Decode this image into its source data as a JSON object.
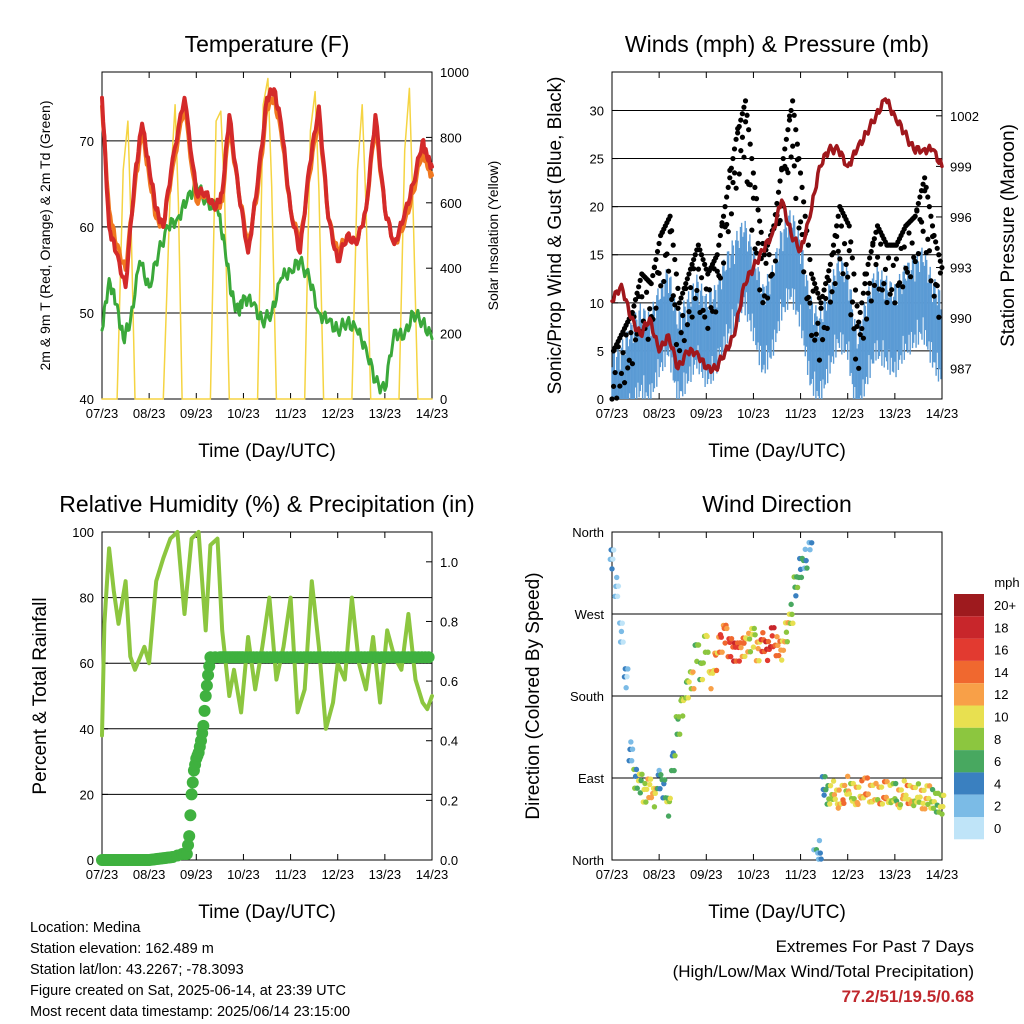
{
  "chart_data": [
    {
      "type": "line",
      "title": "Temperature (F)",
      "xlabel": "Time (Day/UTC)",
      "ylabel": "2m & 9m T (Red, Orange) & 2m Td (Green)",
      "y2label": "Solar Insolation (Yellow)",
      "categories": [
        "07/23",
        "08/23",
        "09/23",
        "10/23",
        "11/23",
        "12/23",
        "13/23",
        "14/23"
      ],
      "ylim": [
        40,
        78
      ],
      "yticks": [
        40,
        50,
        60,
        70
      ],
      "y2lim": [
        0,
        1000
      ],
      "y2ticks": [
        0,
        200,
        400,
        600,
        800,
        1000
      ],
      "grid": true,
      "series": [
        {
          "color": "#d42a2a",
          "axis": "left",
          "x": [
            0,
            0.15,
            0.3,
            0.5,
            0.7,
            0.85,
            1,
            1.15,
            1.3,
            1.5,
            1.75,
            2,
            2.2,
            2.4,
            2.55,
            2.7,
            2.9,
            3.1,
            3.3,
            3.5,
            3.65,
            3.8,
            4,
            4.2,
            4.4,
            4.6,
            4.8,
            5,
            5.2,
            5.4,
            5.6,
            5.8,
            6,
            6.2,
            6.4,
            6.6,
            6.8,
            6.9,
            7
          ],
          "values": [
            75,
            60,
            57,
            53,
            66,
            72,
            67,
            62,
            60,
            68,
            75,
            64,
            64,
            62,
            64,
            73,
            64,
            57,
            65,
            75,
            76,
            72,
            62,
            57,
            67,
            74,
            61,
            56,
            59,
            58,
            62,
            73,
            62,
            58,
            61,
            65,
            70,
            68,
            67
          ]
        },
        {
          "color": "#f07820",
          "axis": "left",
          "x": [
            0,
            0.15,
            0.3,
            0.5,
            0.7,
            0.85,
            1,
            1.15,
            1.3,
            1.5,
            1.75,
            2,
            2.2,
            2.4,
            2.55,
            2.7,
            2.9,
            3.1,
            3.3,
            3.5,
            3.65,
            3.8,
            4,
            4.2,
            4.4,
            4.6,
            4.8,
            5,
            5.2,
            5.4,
            5.6,
            5.8,
            6,
            6.2,
            6.4,
            6.6,
            6.8,
            6.9,
            7
          ],
          "values": [
            74,
            62,
            58,
            55,
            65,
            71,
            66,
            61,
            60,
            67,
            74,
            63,
            64,
            62,
            63,
            72,
            64,
            58,
            64,
            74,
            75,
            71,
            62,
            58,
            66,
            73,
            61,
            57,
            59,
            58,
            62,
            72,
            62,
            58,
            60,
            64,
            69,
            67,
            66
          ]
        },
        {
          "color": "#3aa83a",
          "axis": "left",
          "x": [
            0,
            0.15,
            0.3,
            0.45,
            0.6,
            0.8,
            1,
            1.2,
            1.4,
            1.6,
            1.8,
            2,
            2.2,
            2.45,
            2.6,
            2.75,
            2.9,
            3,
            3.2,
            3.4,
            3.6,
            3.8,
            4,
            4.2,
            4.4,
            4.6,
            4.8,
            5,
            5.2,
            5.4,
            5.6,
            5.8,
            6,
            6.2,
            6.4,
            6.6,
            6.8,
            7
          ],
          "values": [
            48,
            54,
            51,
            47,
            49,
            56,
            53,
            57,
            60,
            61,
            63,
            65,
            63,
            62,
            58,
            52,
            50,
            52,
            51,
            49,
            50,
            54,
            55,
            56,
            54,
            50,
            49,
            48,
            49,
            48,
            46,
            42,
            41,
            48,
            47,
            50,
            49,
            47
          ]
        },
        {
          "color": "#f5d442",
          "axis": "right",
          "x": [
            0,
            0.32,
            0.45,
            0.55,
            0.62,
            0.7,
            1.3,
            1.45,
            1.55,
            1.62,
            1.7,
            2.3,
            2.42,
            2.52,
            2.6,
            2.7,
            3.3,
            3.42,
            3.52,
            3.6,
            3.7,
            4.3,
            4.42,
            4.52,
            4.6,
            4.7,
            5.3,
            5.42,
            5.52,
            5.6,
            5.7,
            6.3,
            6.42,
            6.52,
            6.6,
            6.7,
            7
          ],
          "values": [
            0,
            0,
            700,
            850,
            520,
            0,
            0,
            650,
            900,
            600,
            0,
            0,
            850,
            880,
            620,
            0,
            0,
            900,
            980,
            650,
            0,
            0,
            820,
            940,
            640,
            0,
            0,
            700,
            900,
            590,
            0,
            0,
            760,
            950,
            580,
            0,
            0
          ]
        }
      ]
    },
    {
      "type": "scatter",
      "title": "Winds (mph) & Pressure (mb)",
      "xlabel": "Time (Day/UTC)",
      "ylabel": "Sonic/Prop Wind & Gust (Blue, Black)",
      "y2label": "Station Pressure (Maroon)",
      "categories": [
        "07/23",
        "08/23",
        "09/23",
        "10/23",
        "11/23",
        "12/23",
        "13/23",
        "14/23"
      ],
      "ylim": [
        0,
        34
      ],
      "yticks": [
        0,
        5,
        10,
        15,
        20,
        25,
        30
      ],
      "y2lim": [
        985.2,
        1004.6
      ],
      "y2ticks": [
        987,
        990,
        993,
        996,
        999,
        1002
      ],
      "grid": true,
      "series": [
        {
          "color": "#5b9bd5",
          "kind": "wind",
          "x": [
            0,
            0.2,
            0.4,
            0.6,
            0.8,
            1,
            1.2,
            1.4,
            1.6,
            1.8,
            2,
            2.2,
            2.4,
            2.6,
            2.8,
            3,
            3.2,
            3.4,
            3.6,
            3.8,
            4,
            4.2,
            4.4,
            4.6,
            4.8,
            5,
            5.2,
            5.4,
            5.6,
            5.8,
            6,
            6.2,
            6.4,
            6.6,
            6.8,
            7
          ],
          "values": [
            2,
            3,
            5,
            7,
            6,
            9,
            11,
            6,
            8,
            10,
            8,
            9,
            12,
            14,
            16,
            13,
            9,
            11,
            15,
            17,
            14,
            8,
            6,
            9,
            12,
            11,
            4,
            8,
            11,
            10,
            9,
            11,
            12,
            13,
            10,
            8
          ]
        },
        {
          "color": "#000000",
          "kind": "gust",
          "x": [
            0,
            0.2,
            0.4,
            0.6,
            0.8,
            1,
            1.2,
            1.4,
            1.6,
            1.8,
            2,
            2.2,
            2.4,
            2.6,
            2.8,
            3,
            3.2,
            3.4,
            3.6,
            3.8,
            4,
            4.2,
            4.4,
            4.6,
            4.8,
            5,
            5.2,
            5.4,
            5.6,
            5.8,
            6,
            6.2,
            6.4,
            6.6,
            6.8,
            7
          ],
          "values": [
            5,
            7,
            9,
            13,
            12,
            17,
            19,
            10,
            13,
            16,
            13,
            15,
            21,
            27,
            31,
            22,
            15,
            18,
            25,
            31,
            22,
            13,
            10,
            14,
            20,
            18,
            8,
            14,
            18,
            16,
            16,
            18,
            19,
            23,
            17,
            13
          ]
        },
        {
          "color": "#a0171c",
          "kind": "pressure",
          "x": [
            0,
            0.2,
            0.4,
            0.6,
            0.8,
            1,
            1.2,
            1.4,
            1.6,
            1.8,
            2,
            2.2,
            2.4,
            2.6,
            2.8,
            3,
            3.2,
            3.4,
            3.6,
            3.8,
            4,
            4.2,
            4.4,
            4.6,
            4.8,
            5,
            5.2,
            5.4,
            5.6,
            5.8,
            6,
            6.2,
            6.4,
            6.6,
            6.8,
            7
          ],
          "values": [
            991,
            992,
            990,
            989,
            990,
            988,
            989,
            987,
            988,
            988,
            987,
            987,
            988,
            989,
            992,
            993,
            994,
            995,
            997,
            995,
            994,
            996,
            999,
            1000,
            1000,
            999,
            1000,
            1001,
            1002,
            1003,
            1002,
            1001,
            1000,
            1000,
            1000,
            999
          ]
        }
      ]
    },
    {
      "type": "line",
      "title": "Relative Humidity (%) & Precipitation (in)",
      "xlabel": "Time (Day/UTC)",
      "ylabel": "Percent & Total Rainfall",
      "categories": [
        "07/23",
        "08/23",
        "09/23",
        "10/23",
        "11/23",
        "12/23",
        "13/23",
        "14/23"
      ],
      "ylim": [
        0,
        100
      ],
      "yticks": [
        0,
        20,
        40,
        60,
        80,
        100
      ],
      "y2lim": [
        0,
        1.1
      ],
      "y2ticks": [
        "0.0",
        "0.2",
        "0.4",
        "0.6",
        "0.8",
        "1.0"
      ],
      "grid": true,
      "series": [
        {
          "color": "#8cc63f",
          "axis": "left",
          "x": [
            0,
            0.05,
            0.15,
            0.25,
            0.35,
            0.5,
            0.6,
            0.7,
            0.9,
            1.0,
            1.15,
            1.3,
            1.45,
            1.6,
            1.75,
            1.9,
            2.05,
            2.2,
            2.3,
            2.45,
            2.55,
            2.7,
            2.8,
            2.95,
            3.1,
            3.25,
            3.4,
            3.55,
            3.7,
            3.85,
            4.0,
            4.15,
            4.3,
            4.45,
            4.6,
            4.75,
            4.9,
            5.0,
            5.15,
            5.3,
            5.45,
            5.6,
            5.75,
            5.9,
            6.05,
            6.2,
            6.35,
            6.5,
            6.65,
            6.8,
            6.9,
            7
          ],
          "values": [
            38,
            72,
            95,
            82,
            72,
            85,
            62,
            58,
            65,
            60,
            85,
            92,
            98,
            100,
            75,
            98,
            100,
            70,
            96,
            98,
            70,
            50,
            58,
            45,
            68,
            52,
            65,
            80,
            55,
            65,
            80,
            45,
            52,
            85,
            65,
            40,
            48,
            60,
            55,
            80,
            60,
            52,
            68,
            48,
            70,
            62,
            58,
            75,
            55,
            48,
            46,
            50
          ]
        },
        {
          "color": "#3fb13f",
          "axis": "right",
          "kind": "precip",
          "x": [
            0,
            0.5,
            1.0,
            1.5,
            1.7,
            1.8,
            1.85,
            1.9,
            1.95,
            2.0,
            2.05,
            2.1,
            2.15,
            2.2,
            2.25,
            2.3,
            2.5,
            3,
            4,
            5,
            6,
            7
          ],
          "values": [
            0,
            0,
            0,
            0.01,
            0.02,
            0.02,
            0.08,
            0.22,
            0.3,
            0.34,
            0.36,
            0.4,
            0.45,
            0.55,
            0.62,
            0.68,
            0.68,
            0.68,
            0.68,
            0.68,
            0.68,
            0.68
          ]
        }
      ]
    },
    {
      "type": "scatter",
      "title": "Wind Direction",
      "xlabel": "Time (Day/UTC)",
      "ylabel": "Direction (Colored By Speed)",
      "categories": [
        "07/23",
        "08/23",
        "09/23",
        "10/23",
        "11/23",
        "12/23",
        "13/23",
        "14/23"
      ],
      "yticks": [
        "North",
        "East",
        "South",
        "West",
        "North"
      ],
      "ylim": [
        0,
        360
      ],
      "grid": true,
      "colorbar": {
        "unit": "mph",
        "labels": [
          "20+",
          "18",
          "16",
          "14",
          "12",
          "10",
          "8",
          "6",
          "4",
          "2",
          "0"
        ],
        "colors": [
          "#9e1a1e",
          "#c8262b",
          "#e23a30",
          "#f0682f",
          "#f8a048",
          "#e8e050",
          "#8cc63f",
          "#48a860",
          "#3a80c0",
          "#7bbbe6",
          "#bfe4f8"
        ]
      },
      "x": [
        0,
        0.1,
        0.2,
        0.3,
        0.4,
        0.5,
        0.6,
        0.7,
        0.8,
        0.9,
        1.0,
        1.1,
        1.2,
        1.3,
        1.4,
        1.5,
        1.6,
        1.7,
        1.8,
        1.9,
        2.0,
        2.1,
        2.2,
        2.3,
        2.4,
        2.5,
        2.6,
        2.7,
        2.8,
        2.9,
        3.0,
        3.1,
        3.2,
        3.3,
        3.4,
        3.5,
        3.6,
        3.7,
        3.8,
        3.9,
        4.0,
        4.1,
        4.2,
        4.3,
        4.4,
        4.5,
        4.6,
        4.7,
        4.8,
        4.9,
        5.0,
        5.1,
        5.2,
        5.3,
        5.4,
        5.5,
        5.6,
        5.7,
        5.8,
        5.9,
        6.0,
        6.1,
        6.2,
        6.3,
        6.4,
        6.5,
        6.6,
        6.7,
        6.8,
        6.9,
        7.0
      ],
      "values": [
        330,
        300,
        250,
        200,
        120,
        90,
        85,
        75,
        80,
        70,
        90,
        80,
        60,
        110,
        150,
        170,
        190,
        200,
        230,
        210,
        240,
        200,
        220,
        240,
        250,
        235,
        230,
        230,
        235,
        240,
        245,
        230,
        240,
        230,
        245,
        235,
        230,
        250,
        270,
        300,
        320,
        330,
        350,
        0,
        10,
        80,
        70,
        75,
        65,
        70,
        80,
        72,
        68,
        75,
        78,
        70,
        72,
        68,
        74,
        70,
        72,
        65,
        75,
        70,
        68,
        72,
        65,
        70,
        66,
        62,
        60
      ],
      "speeds": [
        2,
        1,
        1,
        2,
        3,
        6,
        8,
        9,
        11,
        10,
        4,
        5,
        8,
        6,
        7,
        9,
        8,
        10,
        7,
        8,
        9,
        11,
        12,
        14,
        13,
        15,
        16,
        14,
        12,
        10,
        9,
        11,
        15,
        16,
        17,
        13,
        12,
        10,
        8,
        6,
        5,
        4,
        3,
        4,
        3,
        5,
        8,
        10,
        11,
        12,
        10,
        9,
        11,
        12,
        13,
        11,
        10,
        12,
        13,
        9,
        8,
        10,
        11,
        12,
        10,
        9,
        11,
        10,
        8,
        7,
        9
      ]
    }
  ],
  "footer": {
    "location": "Location: Medina",
    "elevation": "Station elevation: 162.489 m",
    "latlon": "Station lat/lon: 43.2267; -78.3093",
    "created": "Figure created on Sat, 2025-06-14, at 23:39 UTC",
    "recent": "Most recent data timestamp: 2025/06/14 23:15:00"
  },
  "extremes": {
    "heading": "Extremes For Past 7 Days",
    "subheading": "(High/Low/Max Wind/Total Precipitation)",
    "values": "77.2/51/19.5/0.68"
  }
}
